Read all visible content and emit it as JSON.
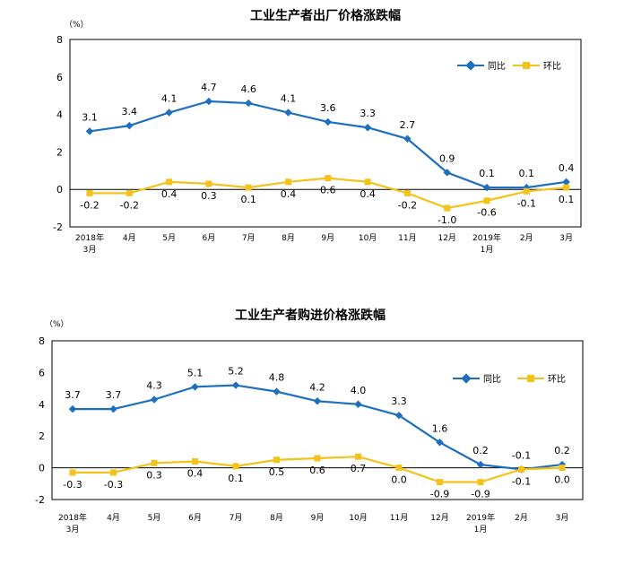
{
  "chart_data": [
    {
      "type": "line",
      "title": "工业生产者出厂价格涨跌幅",
      "unit": "（%）",
      "categories": [
        [
          "2018年",
          "3月"
        ],
        [
          "4月"
        ],
        [
          "5月"
        ],
        [
          "6月"
        ],
        [
          "7月"
        ],
        [
          "8月"
        ],
        [
          "9月"
        ],
        [
          "10月"
        ],
        [
          "11月"
        ],
        [
          "12月"
        ],
        [
          "2019年",
          "1月"
        ],
        [
          "2月"
        ],
        [
          "3月"
        ]
      ],
      "ylim": [
        -2,
        8
      ],
      "yticks": [
        8,
        6,
        4,
        2,
        0,
        -2
      ],
      "legend_position": "top-right",
      "series": [
        {
          "name": "同比",
          "color": "#1f6fbf",
          "marker": "diamond",
          "values": [
            3.1,
            3.4,
            4.1,
            4.7,
            4.6,
            4.1,
            3.6,
            3.3,
            2.7,
            0.9,
            0.1,
            0.1,
            0.4
          ],
          "labels": [
            "3.1",
            "3.4",
            "4.1",
            "4.7",
            "4.6",
            "4.1",
            "3.6",
            "3.3",
            "2.7",
            "0.9",
            "0.1",
            "0.1",
            "0.4"
          ]
        },
        {
          "name": "环比",
          "color": "#f4c21a",
          "marker": "square",
          "values": [
            -0.2,
            -0.2,
            0.4,
            0.3,
            0.1,
            0.4,
            0.6,
            0.4,
            -0.2,
            -1.0,
            -0.6,
            -0.1,
            0.1
          ],
          "labels": [
            "-0.2",
            "-0.2",
            "0.4",
            "0.3",
            "0.1",
            "0.4",
            "0.6",
            "0.4",
            "-0.2",
            "-1.0",
            "-0.6",
            "-0.1",
            "0.1"
          ]
        }
      ]
    },
    {
      "type": "line",
      "title": "工业生产者购进价格涨跌幅",
      "unit": "（%）",
      "categories": [
        [
          "2018年",
          "3月"
        ],
        [
          "4月"
        ],
        [
          "5月"
        ],
        [
          "6月"
        ],
        [
          "7月"
        ],
        [
          "8月"
        ],
        [
          "9月"
        ],
        [
          "10月"
        ],
        [
          "11月"
        ],
        [
          "12月"
        ],
        [
          "2019年",
          "1月"
        ],
        [
          "2月"
        ],
        [
          "3月"
        ]
      ],
      "ylim": [
        -2,
        8
      ],
      "yticks": [
        8,
        6,
        4,
        2,
        0,
        -2
      ],
      "legend_position": "top-right",
      "series": [
        {
          "name": "同比",
          "color": "#1f6fbf",
          "marker": "diamond",
          "values": [
            3.7,
            3.7,
            4.3,
            5.1,
            5.2,
            4.8,
            4.2,
            4.0,
            3.3,
            1.6,
            0.2,
            -0.1,
            0.2
          ],
          "labels": [
            "3.7",
            "3.7",
            "4.3",
            "5.1",
            "5.2",
            "4.8",
            "4.2",
            "4.0",
            "3.3",
            "1.6",
            "0.2",
            "-0.1",
            "0.2"
          ]
        },
        {
          "name": "环比",
          "color": "#f4c21a",
          "marker": "square",
          "values": [
            -0.3,
            -0.3,
            0.3,
            0.4,
            0.1,
            0.5,
            0.6,
            0.7,
            0.0,
            -0.9,
            -0.9,
            -0.1,
            0.0
          ],
          "labels": [
            "-0.3",
            "-0.3",
            "0.3",
            "0.4",
            "0.1",
            "0.5",
            "0.6",
            "0.7",
            "0.0",
            "-0.9",
            "-0.9",
            "-0.1",
            "0.0"
          ]
        }
      ]
    }
  ]
}
